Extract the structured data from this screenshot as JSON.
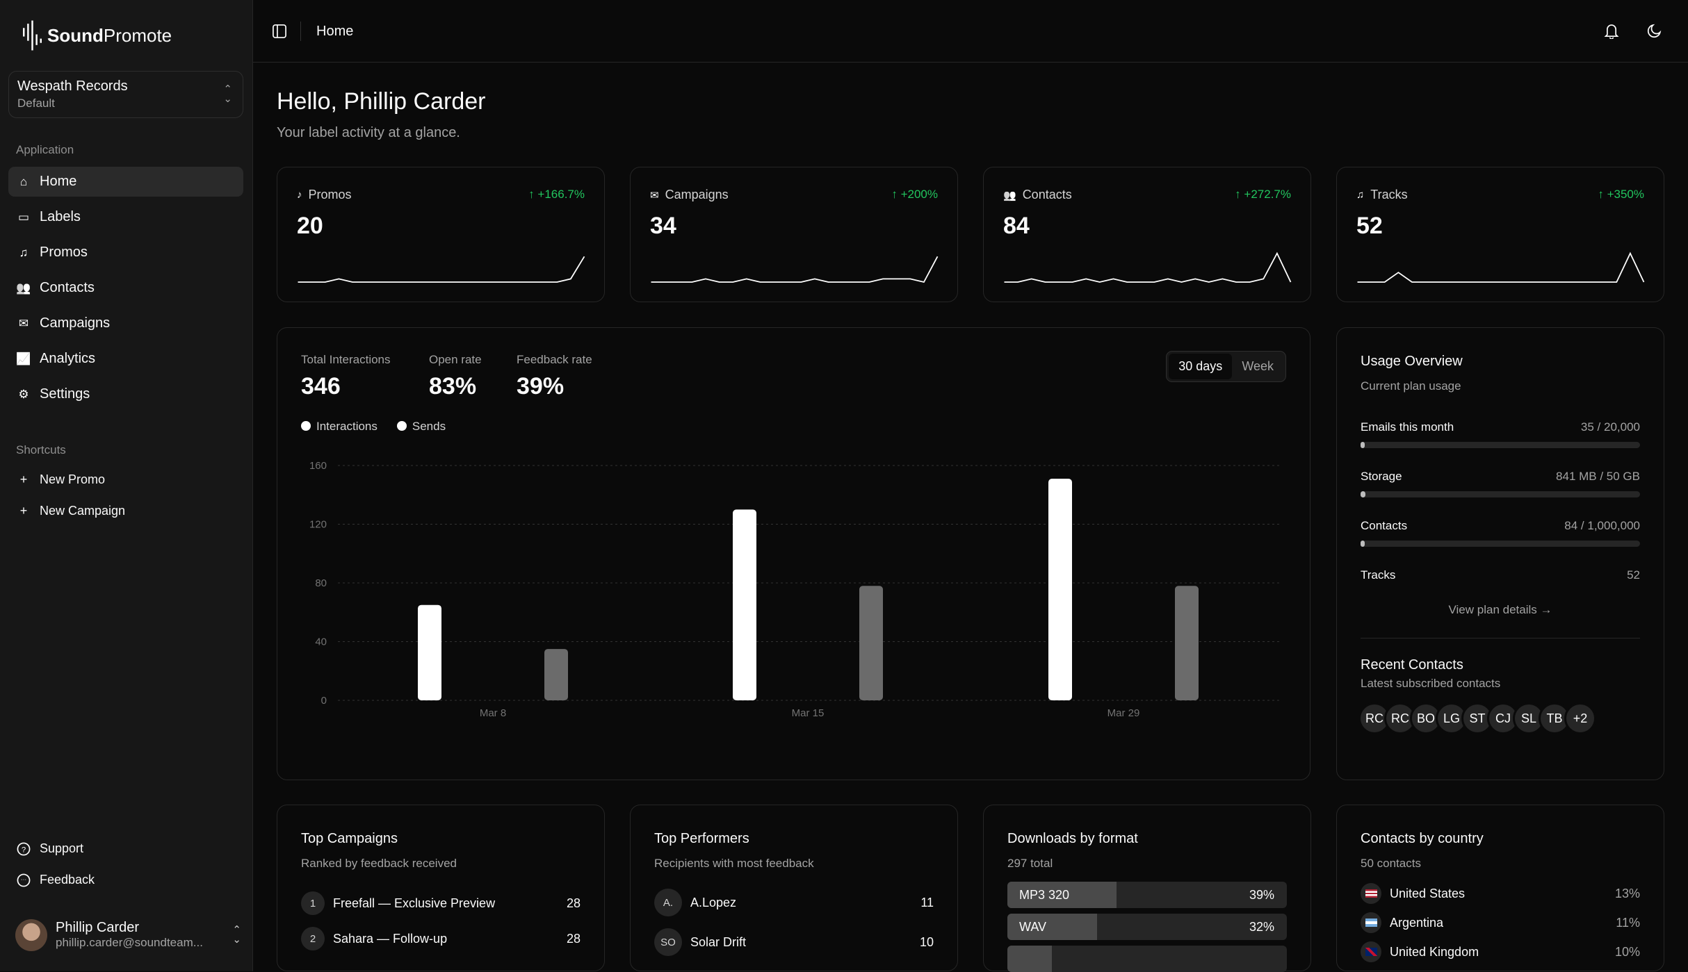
{
  "app": {
    "brand_bold": "Sound",
    "brand_light": "Promote"
  },
  "org": {
    "name": "Wespath Records",
    "plan": "Default"
  },
  "sidebar": {
    "group1": "Application",
    "items": [
      {
        "label": "Home",
        "icon": "home-icon"
      },
      {
        "label": "Labels",
        "icon": "tag-icon"
      },
      {
        "label": "Promos",
        "icon": "promo-icon"
      },
      {
        "label": "Contacts",
        "icon": "users-icon"
      },
      {
        "label": "Campaigns",
        "icon": "mail-icon"
      },
      {
        "label": "Analytics",
        "icon": "chart-icon"
      },
      {
        "label": "Settings",
        "icon": "gear-icon"
      }
    ],
    "group2": "Shortcuts",
    "shortcuts": [
      {
        "label": "New Promo"
      },
      {
        "label": "New Campaign"
      }
    ],
    "footer": [
      {
        "label": "Support"
      },
      {
        "label": "Feedback"
      }
    ]
  },
  "user": {
    "name": "Phillip Carder",
    "email": "phillip.carder@soundteam..."
  },
  "header": {
    "breadcrumb": "Home"
  },
  "greeting": {
    "title": "Hello, Phillip Carder",
    "subtitle": "Your label activity at a glance."
  },
  "stats": [
    {
      "label": "Promos",
      "value": "20",
      "change": "+166.7%",
      "trend": [
        0,
        0,
        0,
        1,
        0,
        0,
        0,
        0,
        0,
        0,
        0,
        0,
        0,
        0,
        0,
        0,
        0,
        0,
        0,
        0,
        1,
        8
      ]
    },
    {
      "label": "Campaigns",
      "value": "34",
      "change": "+200%",
      "trend": [
        0,
        0,
        0,
        0,
        1,
        0,
        0,
        1,
        0,
        0,
        0,
        0,
        1,
        0,
        0,
        0,
        0,
        1,
        1,
        1,
        0,
        8
      ]
    },
    {
      "label": "Contacts",
      "value": "84",
      "change": "+272.7%",
      "trend": [
        0,
        0,
        1,
        0,
        0,
        0,
        1,
        0,
        1,
        0,
        0,
        0,
        1,
        0,
        1,
        0,
        1,
        0,
        0,
        1,
        9,
        0
      ]
    },
    {
      "label": "Tracks",
      "value": "52",
      "change": "+350%",
      "trend": [
        0,
        0,
        0,
        3,
        0,
        0,
        0,
        0,
        0,
        0,
        0,
        0,
        0,
        0,
        0,
        0,
        0,
        0,
        0,
        0,
        9,
        0
      ]
    }
  ],
  "overview": {
    "metrics": [
      {
        "label": "Total Interactions",
        "value": "346"
      },
      {
        "label": "Open rate",
        "value": "83%"
      },
      {
        "label": "Feedback rate",
        "value": "39%"
      }
    ],
    "range_tabs": [
      "30 days",
      "Week"
    ],
    "active_tab": "30 days"
  },
  "chart_data": {
    "type": "bar",
    "categories": [
      "Mar 8",
      "Mar 15",
      "Mar 29"
    ],
    "series": [
      {
        "name": "Interactions",
        "values": [
          65,
          130,
          151
        ],
        "color": "#ffffff"
      },
      {
        "name": "Sends",
        "values": [
          35,
          78,
          78
        ],
        "color": "#6b6b6b"
      }
    ],
    "yticks": [
      0,
      40,
      80,
      120,
      160
    ],
    "ylim": [
      0,
      160
    ],
    "grid": true,
    "legend": "top-left"
  },
  "usage": {
    "title": "Usage Overview",
    "subtitle": "Current plan usage",
    "rows": [
      {
        "label": "Emails this month",
        "value": "35 / 20,000",
        "fraction": 0.00175
      },
      {
        "label": "Storage",
        "value": "841 MB / 50 GB",
        "fraction": 0.0164
      },
      {
        "label": "Contacts",
        "value": "84 / 1,000,000",
        "fraction": 8.4e-05
      },
      {
        "label": "Tracks",
        "value": "52"
      }
    ],
    "link": "View plan details →"
  },
  "recent": {
    "title": "Recent Contacts",
    "subtitle": "Latest subscribed contacts",
    "initials": [
      "RC",
      "RC",
      "BO",
      "LG",
      "ST",
      "CJ",
      "SL",
      "TB",
      "+2"
    ]
  },
  "top_campaigns": {
    "title": "Top Campaigns",
    "subtitle": "Ranked by feedback received",
    "items": [
      {
        "rank": "1",
        "name": "Freefall — Exclusive Preview",
        "count": "28"
      },
      {
        "rank": "2",
        "name": "Sahara — Follow-up",
        "count": "28"
      }
    ]
  },
  "top_performers": {
    "title": "Top Performers",
    "subtitle": "Recipients with most feedback",
    "items": [
      {
        "initials": "A.",
        "name": "A.Lopez",
        "count": "11"
      },
      {
        "initials": "SO",
        "name": "Solar Drift",
        "count": "10"
      }
    ]
  },
  "downloads": {
    "title": "Downloads by format",
    "subtitle": "297 total",
    "items": [
      {
        "format": "MP3 320",
        "pct": "39%",
        "value": 39
      },
      {
        "format": "WAV",
        "pct": "32%",
        "value": 32
      },
      {
        "format": "",
        "pct": "",
        "value": 16
      }
    ]
  },
  "countries": {
    "title": "Contacts by country",
    "subtitle": "50 contacts",
    "items": [
      {
        "name": "United States",
        "pct": "13%",
        "flag": "us-flag-icon"
      },
      {
        "name": "Argentina",
        "pct": "11%",
        "flag": "ar-flag-icon"
      },
      {
        "name": "United Kingdom",
        "pct": "10%",
        "flag": "uk-flag-icon"
      }
    ]
  }
}
